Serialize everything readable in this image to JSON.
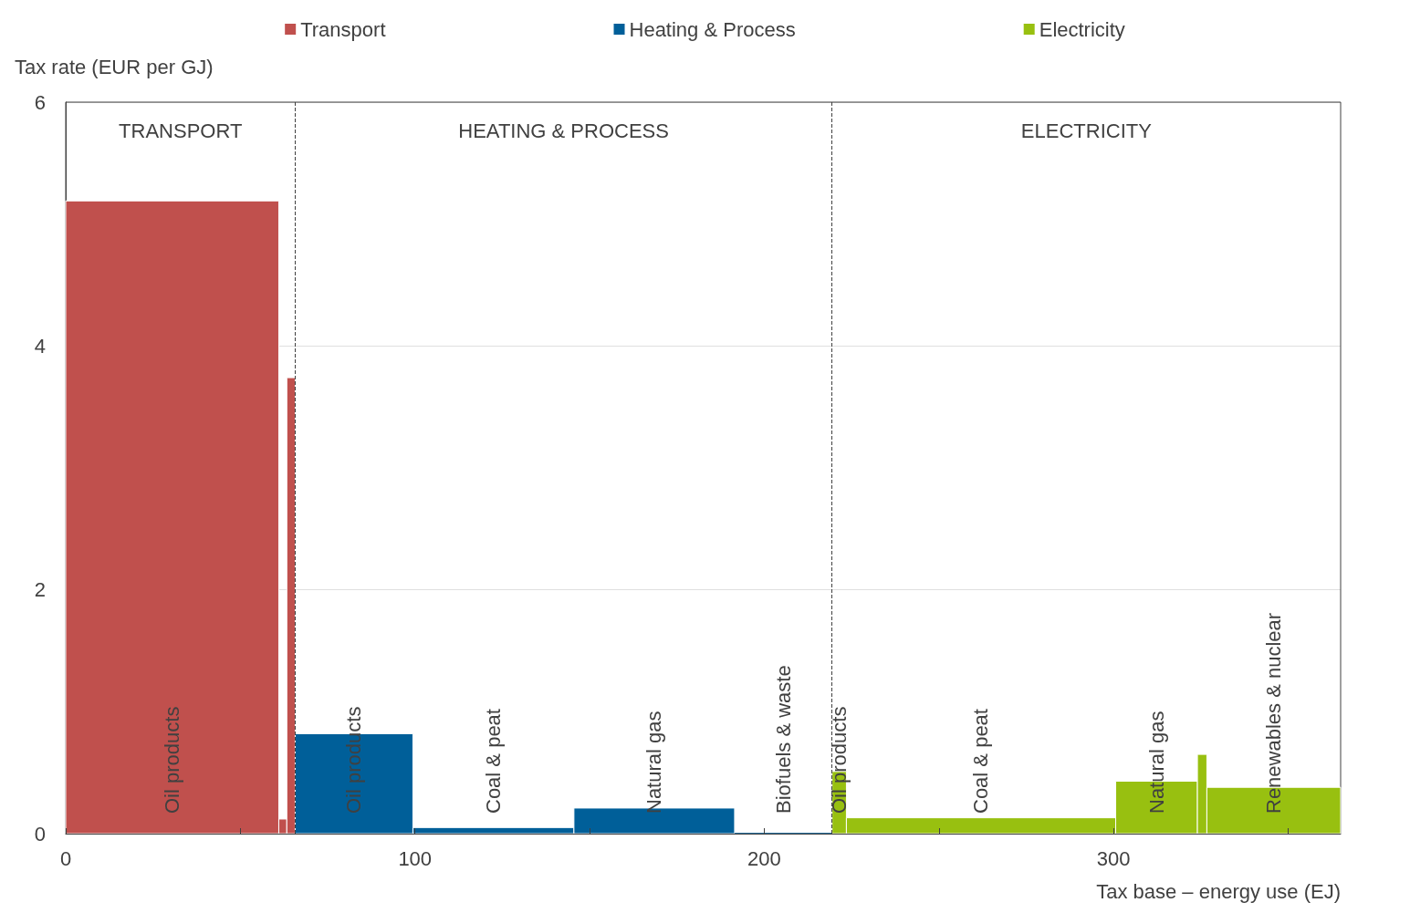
{
  "chart_data": {
    "type": "histogram",
    "ylabel": "Tax rate (EUR per GJ)",
    "xlabel": "Tax base – energy use (EJ)",
    "bins": [
      0,
      61,
      63.3,
      65.7,
      99.4,
      145.5,
      191.5,
      219.4,
      223.5,
      300.6,
      324,
      326.7,
      365
    ],
    "series": [
      {
        "name": "Transport",
        "color": "#c0504d",
        "values": [
          5.19,
          0.12,
          3.74,
          null,
          null,
          null,
          null,
          null,
          null,
          null,
          null,
          null
        ]
      },
      {
        "name": "Heating & Process",
        "color": "#005f99",
        "values": [
          null,
          null,
          null,
          0.82,
          0.05,
          0.21,
          0,
          null,
          null,
          null,
          null,
          null
        ]
      },
      {
        "name": "Electricity",
        "color": "#98c010",
        "values": [
          null,
          null,
          null,
          null,
          null,
          null,
          null,
          0.51,
          0.13,
          0.43,
          0.65,
          0.38
        ]
      }
    ],
    "xlim": [
      0,
      365
    ],
    "xticks": [
      0,
      {
        "value": 50,
        "label": null
      },
      100,
      {
        "value": 150,
        "label": null
      },
      200,
      {
        "value": 250,
        "label": null
      },
      300,
      {
        "value": 350,
        "label": null
      }
    ],
    "ylim": [
      0,
      6
    ],
    "yticks": [
      0,
      2,
      4,
      6
    ],
    "grid": "y",
    "legend": "top",
    "ref_lines": [
      {
        "axis": "x",
        "value": 65.7,
        "line_style": "dashed",
        "color": "#404040"
      },
      {
        "axis": "x",
        "value": 219.4,
        "line_style": "dashed",
        "color": "#404040"
      }
    ],
    "annotations": [
      "TRANSPORT",
      "HEATING & PROCESS",
      "ELECTRICITY",
      {
        "text": "Oil products",
        "x": 30.5,
        "y": 0
      },
      {
        "text": "Oil products",
        "x": 82.55,
        "y": 0
      },
      {
        "text": "Coal & peat",
        "x": 122.45,
        "y": 0
      },
      {
        "text": "Natural gas",
        "x": 168.5,
        "y": 0
      },
      {
        "text": "Biofuels & waste",
        "x": 205.45,
        "y": 0
      },
      {
        "text": "Oil products",
        "x": 221.45,
        "y": 0
      },
      {
        "text": "Coal & peat",
        "x": 262.05,
        "y": 0
      },
      {
        "text": "Natural gas",
        "x": 312.3,
        "y": 0
      },
      {
        "text": "Renewables & nuclear",
        "x": 345.85,
        "y": 0
      }
    ]
  }
}
